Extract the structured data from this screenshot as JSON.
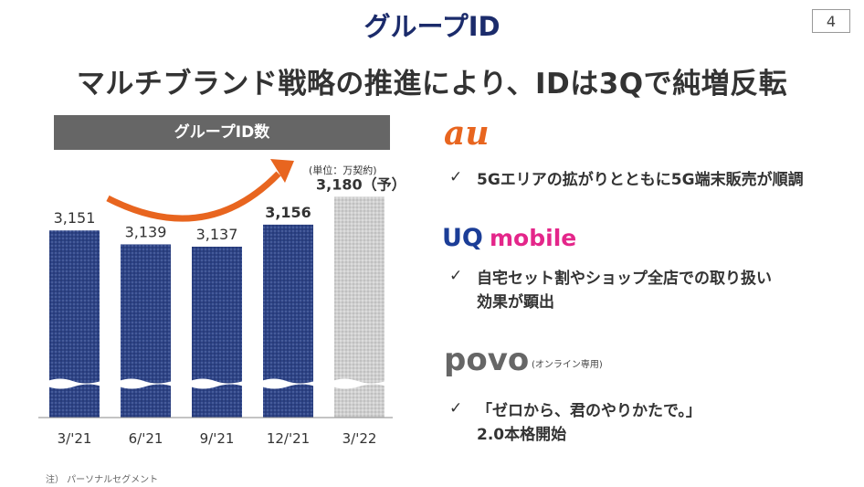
{
  "page": {
    "title": "グループID",
    "page_number": "4",
    "headline": "マルチブランド戦略の推進により、IDは3Qで純増反転",
    "footnote": "注） パーソナルセグメント"
  },
  "chart": {
    "header": "グループID数",
    "unit": "(単位：万契約)",
    "forecast_suffix": "（予）"
  },
  "chart_data": {
    "type": "bar",
    "title": "グループID数",
    "unit": "万契約",
    "categories": [
      "3/'21",
      "6/'21",
      "9/'21",
      "12/'21",
      "3/'22"
    ],
    "values": [
      3151,
      3139,
      3137,
      3156,
      3180
    ],
    "value_labels": [
      "3,151",
      "3,139",
      "3,137",
      "3,156",
      "3,180"
    ],
    "forecast": [
      false,
      false,
      false,
      false,
      true
    ],
    "axis_break": true,
    "colors": {
      "actual": "#2e4486",
      "forecast": "#c8c8c8",
      "arrow": "#e8651f"
    }
  },
  "brands": {
    "au": {
      "name": "au",
      "color": "#e8651f",
      "points": [
        "5Gエリアの拡がりとともに5G端末販売が順調"
      ]
    },
    "uq": {
      "name_uq": "UQ",
      "name_mobile": "mobile",
      "colors": {
        "uq": "#1b3d97",
        "mobile": "#e4268a"
      },
      "points": [
        "自宅セット割やショップ全店での取り扱い",
        "効果が顕出"
      ]
    },
    "povo": {
      "name": "povo",
      "note": "(オンライン専用)",
      "color": "#666666",
      "points": [
        "「ゼロから、君のやりかたで。」",
        "2.0本格開始"
      ]
    }
  },
  "icons": {
    "check": "✓"
  }
}
